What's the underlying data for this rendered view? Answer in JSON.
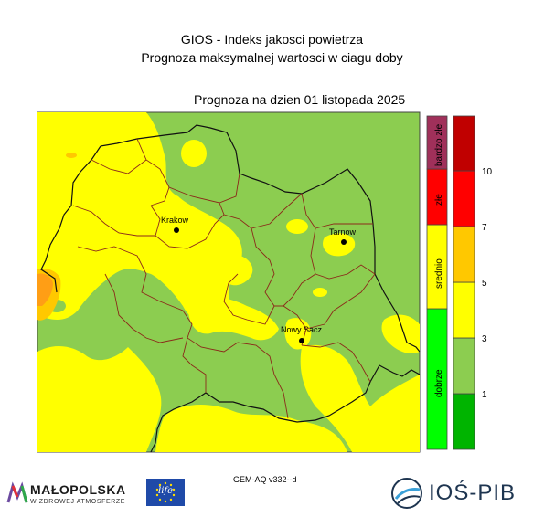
{
  "title": {
    "line1": "GIOS - Indeks jakosci powietrza",
    "line2": "Prognoza maksymalnej wartosci w ciagu doby"
  },
  "forecast_date": "Prognoza na dzien  01 listopada 2025",
  "cities": [
    {
      "name": "Krakow"
    },
    {
      "name": "Tarnow"
    },
    {
      "name": "Nowy Sacz"
    }
  ],
  "category_scale": [
    {
      "label": "dobrze",
      "color": "#00ff00"
    },
    {
      "label": "srednio",
      "color": "#ffff00"
    },
    {
      "label": "złe",
      "color": "#ff0000"
    },
    {
      "label": "bardzo złe",
      "color": "#a0305a"
    }
  ],
  "value_scale": {
    "colors": [
      "#00b400",
      "#8ccd50",
      "#ffff00",
      "#ffc800",
      "#ff0000",
      "#c00000"
    ],
    "ticks": [
      "1",
      "3",
      "5",
      "7",
      "10"
    ]
  },
  "model": "GEM-AQ v332--d",
  "logos": {
    "malopolska": "MAŁOPOLSKA",
    "malopolska_tagline": "W ZDROWEJ ATMOSFERZE",
    "life": "life",
    "ios": "IOŚ-PIB"
  },
  "colors": {
    "good": "#8ccd50",
    "moderate": "#ffff00",
    "elevated": "#ffc800",
    "high": "#ff8c1e"
  }
}
